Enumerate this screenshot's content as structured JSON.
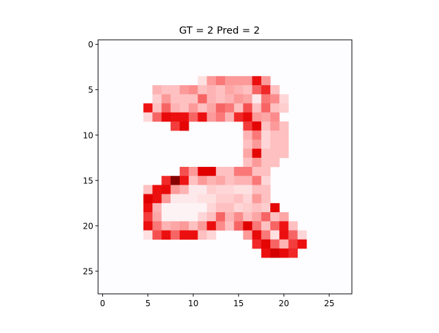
{
  "chart_data": {
    "type": "heatmap",
    "title": "GT = 2 Pred = 2",
    "xlabel": "",
    "ylabel": "",
    "grid": false,
    "rows": 28,
    "cols": 28,
    "xlim": [
      -0.5,
      27.5
    ],
    "ylim": [
      27.5,
      -0.5
    ],
    "x_ticks": [
      0,
      5,
      10,
      15,
      20,
      25
    ],
    "y_ticks": [
      0,
      5,
      10,
      15,
      20,
      25
    ],
    "x_tick_labels": [
      "0",
      "5",
      "10",
      "15",
      "20",
      "25"
    ],
    "y_tick_labels": [
      "0",
      "5",
      "10",
      "15",
      "20",
      "25"
    ],
    "colormap": "Reds",
    "background_value": 0.0,
    "background_color": "#fdfcff",
    "value_range": [
      0,
      1
    ],
    "cells": [
      [
        4,
        11,
        0.15
      ],
      [
        4,
        12,
        0.45
      ],
      [
        4,
        13,
        0.55
      ],
      [
        4,
        14,
        0.45
      ],
      [
        4,
        15,
        0.45
      ],
      [
        4,
        16,
        0.45
      ],
      [
        4,
        17,
        0.85
      ],
      [
        4,
        18,
        0.45
      ],
      [
        5,
        6,
        0.35
      ],
      [
        5,
        7,
        0.3
      ],
      [
        5,
        8,
        0.3
      ],
      [
        5,
        9,
        0.45
      ],
      [
        5,
        10,
        0.5
      ],
      [
        5,
        11,
        0.3
      ],
      [
        5,
        12,
        0.35
      ],
      [
        5,
        13,
        0.3
      ],
      [
        5,
        14,
        0.4
      ],
      [
        5,
        15,
        0.35
      ],
      [
        5,
        16,
        0.3
      ],
      [
        5,
        17,
        0.6
      ],
      [
        5,
        18,
        0.75
      ],
      [
        5,
        19,
        0.3
      ],
      [
        6,
        6,
        0.25
      ],
      [
        6,
        7,
        0.45
      ],
      [
        6,
        8,
        0.3
      ],
      [
        6,
        9,
        0.3
      ],
      [
        6,
        10,
        0.3
      ],
      [
        6,
        11,
        0.6
      ],
      [
        6,
        12,
        0.35
      ],
      [
        6,
        13,
        0.3
      ],
      [
        6,
        14,
        0.35
      ],
      [
        6,
        15,
        0.45
      ],
      [
        6,
        16,
        0.4
      ],
      [
        6,
        17,
        0.1
      ],
      [
        6,
        18,
        0.55
      ],
      [
        6,
        19,
        0.5
      ],
      [
        6,
        20,
        0.2
      ],
      [
        7,
        5,
        0.8
      ],
      [
        7,
        6,
        0.3
      ],
      [
        7,
        7,
        0.6
      ],
      [
        7,
        8,
        0.35
      ],
      [
        7,
        9,
        0.3
      ],
      [
        7,
        10,
        0.45
      ],
      [
        7,
        11,
        0.3
      ],
      [
        7,
        12,
        0.4
      ],
      [
        7,
        13,
        0.6
      ],
      [
        7,
        14,
        0.55
      ],
      [
        7,
        15,
        0.3
      ],
      [
        7,
        16,
        0.65
      ],
      [
        7,
        17,
        0.3
      ],
      [
        7,
        18,
        0.6
      ],
      [
        7,
        19,
        0.3
      ],
      [
        7,
        20,
        0.25
      ],
      [
        8,
        5,
        0.2
      ],
      [
        8,
        6,
        0.6
      ],
      [
        8,
        7,
        0.9
      ],
      [
        8,
        8,
        0.85
      ],
      [
        8,
        9,
        0.85
      ],
      [
        8,
        10,
        0.6
      ],
      [
        8,
        11,
        0.85
      ],
      [
        8,
        12,
        0.45
      ],
      [
        8,
        13,
        0.55
      ],
      [
        8,
        14,
        0.35
      ],
      [
        8,
        15,
        0.75
      ],
      [
        8,
        16,
        0.9
      ],
      [
        8,
        17,
        0.45
      ],
      [
        8,
        18,
        0.4
      ],
      [
        8,
        19,
        0.5
      ],
      [
        9,
        8,
        0.7
      ],
      [
        9,
        9,
        0.95
      ],
      [
        9,
        16,
        0.7
      ],
      [
        9,
        17,
        0.95
      ],
      [
        9,
        18,
        0.3
      ],
      [
        9,
        19,
        0.45
      ],
      [
        9,
        20,
        0.3
      ],
      [
        10,
        16,
        0.35
      ],
      [
        10,
        17,
        0.55
      ],
      [
        10,
        18,
        0.2
      ],
      [
        10,
        19,
        0.3
      ],
      [
        10,
        20,
        0.3
      ],
      [
        11,
        16,
        0.3
      ],
      [
        11,
        17,
        0.45
      ],
      [
        11,
        18,
        0.2
      ],
      [
        11,
        19,
        0.3
      ],
      [
        11,
        20,
        0.3
      ],
      [
        12,
        16,
        0.4
      ],
      [
        12,
        17,
        0.95
      ],
      [
        12,
        18,
        0.3
      ],
      [
        12,
        19,
        0.3
      ],
      [
        12,
        20,
        0.3
      ],
      [
        13,
        16,
        0.3
      ],
      [
        13,
        17,
        0.45
      ],
      [
        13,
        18,
        0.3
      ],
      [
        13,
        19,
        0.3
      ],
      [
        14,
        9,
        0.65
      ],
      [
        14,
        10,
        0.45
      ],
      [
        14,
        11,
        1.0
      ],
      [
        14,
        12,
        1.0
      ],
      [
        14,
        13,
        0.3
      ],
      [
        14,
        14,
        0.3
      ],
      [
        14,
        15,
        0.55
      ],
      [
        14,
        16,
        0.55
      ],
      [
        14,
        17,
        0.3
      ],
      [
        14,
        18,
        0.3
      ],
      [
        15,
        7,
        0.75
      ],
      [
        15,
        8,
        1.3
      ],
      [
        15,
        9,
        0.8
      ],
      [
        15,
        10,
        0.3
      ],
      [
        15,
        11,
        0.45
      ],
      [
        15,
        12,
        0.35
      ],
      [
        15,
        13,
        0.4
      ],
      [
        15,
        14,
        0.3
      ],
      [
        15,
        15,
        0.35
      ],
      [
        15,
        16,
        0.35
      ],
      [
        15,
        17,
        0.55
      ],
      [
        15,
        18,
        0.2
      ],
      [
        16,
        5,
        0.3
      ],
      [
        16,
        6,
        0.85
      ],
      [
        16,
        7,
        0.9
      ],
      [
        16,
        8,
        0.45
      ],
      [
        16,
        9,
        0.35
      ],
      [
        16,
        10,
        0.1
      ],
      [
        16,
        11,
        0.1
      ],
      [
        16,
        12,
        0.25
      ],
      [
        16,
        13,
        0.2
      ],
      [
        16,
        14,
        0.2
      ],
      [
        16,
        15,
        0.15
      ],
      [
        16,
        16,
        0.15
      ],
      [
        16,
        17,
        0.3
      ],
      [
        16,
        18,
        0.3
      ],
      [
        17,
        5,
        1.0
      ],
      [
        17,
        6,
        0.85
      ],
      [
        17,
        7,
        0.45
      ],
      [
        17,
        8,
        0.1
      ],
      [
        17,
        9,
        0.1
      ],
      [
        17,
        10,
        0.1
      ],
      [
        17,
        11,
        0.15
      ],
      [
        17,
        12,
        0.15
      ],
      [
        17,
        13,
        0.25
      ],
      [
        17,
        14,
        0.25
      ],
      [
        17,
        15,
        0.3
      ],
      [
        17,
        16,
        0.2
      ],
      [
        17,
        17,
        0.45
      ],
      [
        17,
        18,
        0.3
      ],
      [
        18,
        5,
        0.85
      ],
      [
        18,
        6,
        0.35
      ],
      [
        18,
        7,
        0.05
      ],
      [
        18,
        8,
        0.05
      ],
      [
        18,
        9,
        0.05
      ],
      [
        18,
        10,
        0.05
      ],
      [
        18,
        11,
        0.05
      ],
      [
        18,
        12,
        0.2
      ],
      [
        18,
        13,
        0.3
      ],
      [
        18,
        14,
        0.3
      ],
      [
        18,
        15,
        0.2
      ],
      [
        18,
        16,
        0.25
      ],
      [
        18,
        17,
        0.3
      ],
      [
        18,
        18,
        0.25
      ],
      [
        18,
        19,
        0.95
      ],
      [
        19,
        5,
        0.7
      ],
      [
        19,
        6,
        0.4
      ],
      [
        19,
        7,
        0.05
      ],
      [
        19,
        8,
        0.05
      ],
      [
        19,
        9,
        0.05
      ],
      [
        19,
        10,
        0.05
      ],
      [
        19,
        11,
        0.2
      ],
      [
        19,
        12,
        0.3
      ],
      [
        19,
        13,
        0.6
      ],
      [
        19,
        14,
        0.35
      ],
      [
        19,
        15,
        0.5
      ],
      [
        19,
        16,
        0.3
      ],
      [
        19,
        17,
        0.4
      ],
      [
        19,
        18,
        0.6
      ],
      [
        19,
        19,
        0.3
      ],
      [
        19,
        20,
        0.4
      ],
      [
        20,
        5,
        0.85
      ],
      [
        20,
        6,
        0.55
      ],
      [
        20,
        7,
        0.35
      ],
      [
        20,
        8,
        0.4
      ],
      [
        20,
        9,
        0.45
      ],
      [
        20,
        10,
        0.3
      ],
      [
        20,
        11,
        0.45
      ],
      [
        20,
        12,
        0.85
      ],
      [
        20,
        13,
        0.5
      ],
      [
        20,
        14,
        0.3
      ],
      [
        20,
        15,
        0.6
      ],
      [
        20,
        16,
        1.0
      ],
      [
        20,
        17,
        0.55
      ],
      [
        20,
        18,
        0.3
      ],
      [
        20,
        19,
        0.6
      ],
      [
        20,
        20,
        0.8
      ],
      [
        20,
        21,
        0.3
      ],
      [
        21,
        5,
        0.15
      ],
      [
        21,
        6,
        0.65
      ],
      [
        21,
        7,
        0.85
      ],
      [
        21,
        8,
        0.6
      ],
      [
        21,
        9,
        0.85
      ],
      [
        21,
        10,
        0.85
      ],
      [
        21,
        11,
        0.3
      ],
      [
        21,
        12,
        0.2
      ],
      [
        21,
        16,
        0.45
      ],
      [
        21,
        17,
        0.9
      ],
      [
        21,
        18,
        0.55
      ],
      [
        21,
        19,
        0.15
      ],
      [
        21,
        20,
        0.85
      ],
      [
        21,
        21,
        0.6
      ],
      [
        21,
        22,
        0.2
      ],
      [
        22,
        17,
        0.75
      ],
      [
        22,
        18,
        0.95
      ],
      [
        22,
        19,
        0.6
      ],
      [
        22,
        20,
        0.35
      ],
      [
        22,
        21,
        0.7
      ],
      [
        22,
        22,
        0.85
      ],
      [
        23,
        18,
        0.85
      ],
      [
        23,
        19,
        1.05
      ],
      [
        23,
        20,
        0.9
      ],
      [
        23,
        21,
        0.75
      ]
    ]
  }
}
